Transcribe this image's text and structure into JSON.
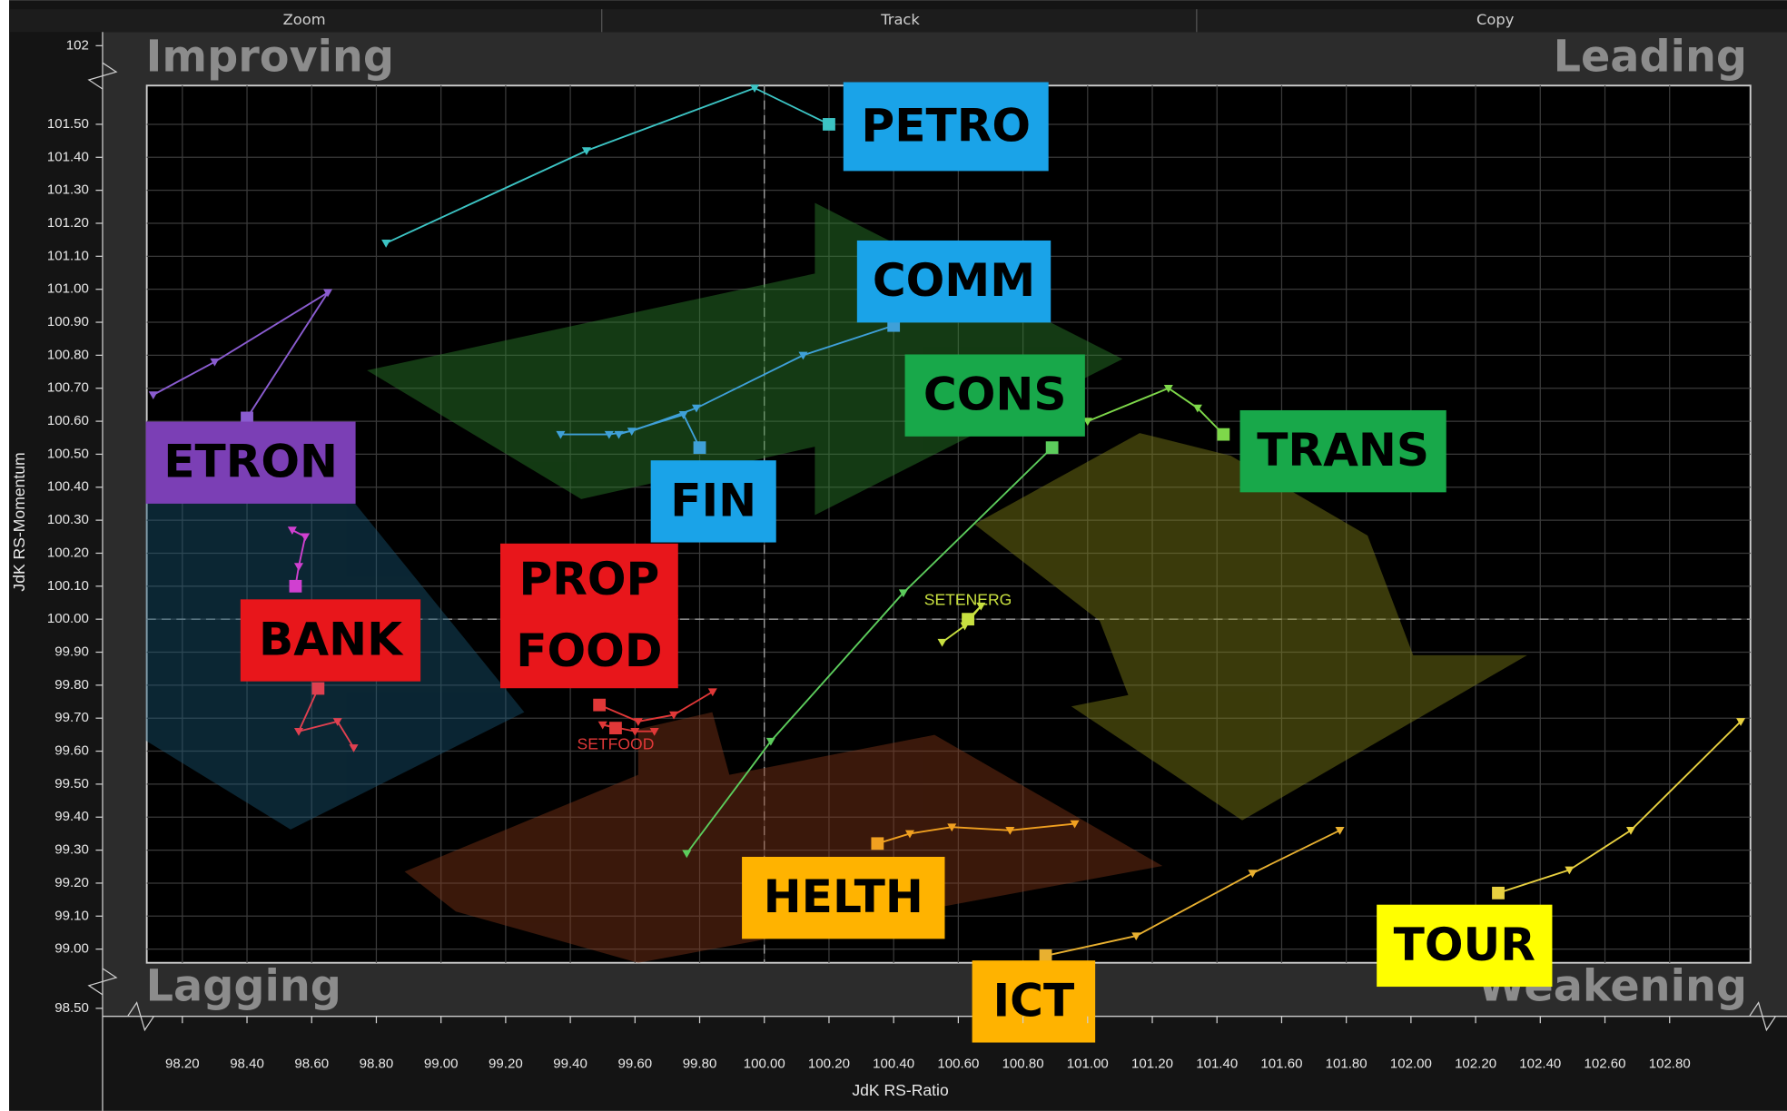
{
  "toolbar": [
    "Zoom",
    "Track",
    "Copy"
  ],
  "chart_data": {
    "type": "rrg",
    "x_label": "JdK RS-Ratio",
    "y_label": "JdK RS-Momentum",
    "quadrants": {
      "top_left": "Improving",
      "top_right": "Leading",
      "bottom_left": "Lagging",
      "bottom_right": "Weakening"
    },
    "xlim": [
      98.09,
      103.05
    ],
    "xticks": [
      {
        "value": 98.2,
        "label": "98.20"
      },
      {
        "value": 98.4,
        "label": "98.40"
      },
      {
        "value": 98.6,
        "label": "98.60"
      },
      {
        "value": 98.8,
        "label": "98.80"
      },
      {
        "value": 99.0,
        "label": "99.00"
      },
      {
        "value": 99.2,
        "label": "99.20"
      },
      {
        "value": 99.4,
        "label": "99.40"
      },
      {
        "value": 99.6,
        "label": "99.60"
      },
      {
        "value": 99.8,
        "label": "99.80"
      },
      {
        "value": 100.0,
        "label": "100.00"
      },
      {
        "value": 100.2,
        "label": "100.20"
      },
      {
        "value": 100.4,
        "label": "100.40"
      },
      {
        "value": 100.6,
        "label": "100.60"
      },
      {
        "value": 100.8,
        "label": "100.80"
      },
      {
        "value": 101.0,
        "label": "101.00"
      },
      {
        "value": 101.2,
        "label": "101.20"
      },
      {
        "value": 101.4,
        "label": "101.40"
      },
      {
        "value": 101.6,
        "label": "101.60"
      },
      {
        "value": 101.8,
        "label": "101.80"
      },
      {
        "value": 102.0,
        "label": "102.00"
      },
      {
        "value": 102.2,
        "label": "102.20"
      },
      {
        "value": 102.4,
        "label": "102.40"
      },
      {
        "value": 102.6,
        "label": "102.60"
      },
      {
        "value": 102.8,
        "label": "102.80"
      }
    ],
    "ylim": [
      98.5,
      102
    ],
    "yticks": [
      {
        "value": 98.5,
        "label": "98.50"
      },
      {
        "value": 99.0,
        "label": "99.00"
      },
      {
        "value": 99.1,
        "label": "99.10"
      },
      {
        "value": 99.2,
        "label": "99.20"
      },
      {
        "value": 99.3,
        "label": "99.30"
      },
      {
        "value": 99.4,
        "label": "99.40"
      },
      {
        "value": 99.5,
        "label": "99.50"
      },
      {
        "value": 99.6,
        "label": "99.60"
      },
      {
        "value": 99.7,
        "label": "99.70"
      },
      {
        "value": 99.8,
        "label": "99.80"
      },
      {
        "value": 99.9,
        "label": "99.90"
      },
      {
        "value": 100.0,
        "label": "100.00"
      },
      {
        "value": 100.1,
        "label": "100.10"
      },
      {
        "value": 100.2,
        "label": "100.20"
      },
      {
        "value": 100.3,
        "label": "100.30"
      },
      {
        "value": 100.4,
        "label": "100.40"
      },
      {
        "value": 100.5,
        "label": "100.50"
      },
      {
        "value": 100.6,
        "label": "100.60"
      },
      {
        "value": 100.7,
        "label": "100.70"
      },
      {
        "value": 100.8,
        "label": "100.80"
      },
      {
        "value": 100.9,
        "label": "100.90"
      },
      {
        "value": 101.0,
        "label": "101.00"
      },
      {
        "value": 101.1,
        "label": "101.10"
      },
      {
        "value": 101.2,
        "label": "101.20"
      },
      {
        "value": 101.3,
        "label": "101.30"
      },
      {
        "value": 101.4,
        "label": "101.40"
      },
      {
        "value": 101.5,
        "label": "101.50"
      },
      102
    ],
    "center": 100,
    "grid": true,
    "series": [
      {
        "name": "PETRO",
        "color": "#3cc4c4",
        "box_color": "#1aa3e8",
        "text_color": "#000000",
        "x": [
          98.83,
          99.45,
          99.97,
          100.2
        ],
        "y": [
          101.14,
          101.42,
          101.61,
          101.5
        ]
      },
      {
        "name": "COMM",
        "color": "#3fa0d8",
        "box_color": "#1aa3e8",
        "text_color": "#000000",
        "x": [
          99.37,
          99.52,
          99.59,
          99.79,
          100.12,
          100.4
        ],
        "y": [
          100.56,
          100.56,
          100.57,
          100.64,
          100.8,
          100.89
        ]
      },
      {
        "name": "CONS",
        "color": "#5ccc5c",
        "box_color": "#18a84a",
        "text_color": "#000000",
        "x": [
          99.76,
          100.02,
          100.43,
          100.89
        ],
        "y": [
          99.29,
          99.63,
          100.08,
          100.52
        ]
      },
      {
        "name": "TRANS",
        "color": "#7ed84a",
        "box_color": "#18a84a",
        "text_color": "#000000",
        "x": [
          101.0,
          101.25,
          101.34,
          101.42
        ],
        "y": [
          100.6,
          100.7,
          100.64,
          100.56
        ]
      },
      {
        "name": "ETRON",
        "color": "#8a5cd0",
        "box_color": "#7b3fb5",
        "text_color": "#000000",
        "x": [
          98.11,
          98.3,
          98.65,
          98.4
        ],
        "y": [
          100.68,
          100.78,
          100.99,
          100.61
        ]
      },
      {
        "name": "FIN",
        "color": "#3fa0d8",
        "box_color": "#1aa3e8",
        "text_color": "#000000",
        "x": [
          99.55,
          99.75,
          99.8
        ],
        "y": [
          100.56,
          100.62,
          100.52
        ]
      },
      {
        "color": "#d040d0",
        "x": [
          98.54,
          98.58,
          98.56,
          98.55
        ],
        "y": [
          100.27,
          100.25,
          100.16,
          100.1
        ]
      },
      {
        "name": "BANK",
        "color": "#e04050",
        "box_color": "#e8161b",
        "text_color": "#000000",
        "x": [
          98.73,
          98.68,
          98.56,
          98.62
        ],
        "y": [
          99.61,
          99.69,
          99.66,
          99.79
        ]
      },
      {
        "name": "PROP",
        "color": "#e03838",
        "box_color": "#e8161b",
        "text_color": "#000000",
        "x": [
          99.84,
          99.72,
          99.61,
          99.49
        ],
        "y": [
          99.78,
          99.71,
          99.69,
          99.74
        ]
      },
      {
        "name": "FOOD",
        "tag": "SETFOOD",
        "color": "#e03838",
        "box_color": "#e8161b",
        "text_color": "#000000",
        "x": [
          99.66,
          99.6,
          99.5,
          99.54
        ],
        "y": [
          99.66,
          99.66,
          99.68,
          99.67
        ]
      },
      {
        "tag": "SETENERG",
        "color": "#c8e040",
        "x": [
          100.55,
          100.62,
          100.67,
          100.63
        ],
        "y": [
          99.93,
          99.98,
          100.04,
          100.0
        ]
      },
      {
        "name": "HELTH",
        "color": "#f0a020",
        "box_color": "#ffb300",
        "text_color": "#000000",
        "x": [
          100.96,
          100.76,
          100.58,
          100.45,
          100.35
        ],
        "y": [
          99.38,
          99.36,
          99.37,
          99.35,
          99.32
        ]
      },
      {
        "name": "ICT",
        "color": "#e8b030",
        "box_color": "#ffb300",
        "text_color": "#000000",
        "x": [
          101.78,
          101.51,
          101.15,
          100.87
        ],
        "y": [
          99.36,
          99.23,
          99.04,
          98.98
        ]
      },
      {
        "name": "TOUR",
        "color": "#e8d040",
        "box_color": "#ffff00",
        "text_color": "#000000",
        "x": [
          103.02,
          102.68,
          102.49,
          102.27
        ],
        "y": [
          99.69,
          99.36,
          99.24,
          99.17
        ]
      }
    ]
  }
}
